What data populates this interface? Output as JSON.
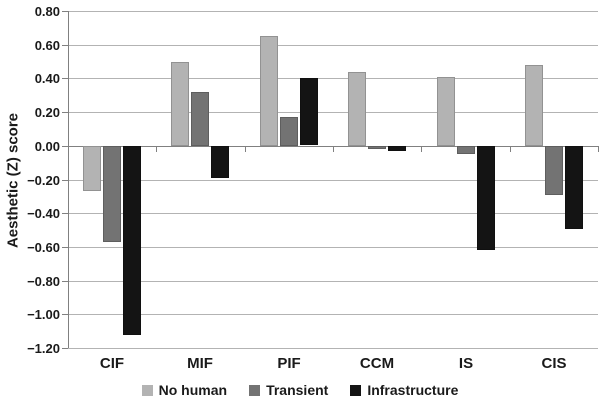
{
  "chart_data": {
    "type": "bar",
    "title": "",
    "xlabel": "",
    "ylabel": "Aesthetic (Z) score",
    "categories": [
      "CIF",
      "MIF",
      "PIF",
      "CCM",
      "IS",
      "CIS"
    ],
    "series": [
      {
        "name": "No human",
        "color": "#b3b3b3",
        "values": [
          -0.27,
          0.5,
          0.65,
          0.44,
          0.41,
          0.48
        ]
      },
      {
        "name": "Transient",
        "color": "#737373",
        "values": [
          -0.57,
          0.32,
          0.17,
          -0.02,
          -0.05,
          -0.29
        ]
      },
      {
        "name": "Infrastructure",
        "color": "#141414",
        "values": [
          -1.12,
          -0.19,
          0.4,
          -0.03,
          -0.62,
          -0.49
        ]
      }
    ],
    "ylim": [
      -1.2,
      0.8
    ],
    "ytick_step": 0.2,
    "ytick_labels": [
      "0.80",
      "0.60",
      "0.40",
      "0.20",
      "0.00",
      "−0.20",
      "−0.40",
      "−0.60",
      "−0.80",
      "−1.00",
      "−1.20"
    ],
    "grid": true,
    "legend_position": "bottom"
  },
  "colors": {
    "gridline": "#b3b3b3",
    "axis": "#808080",
    "text": "#1a1a1a",
    "background": "#ffffff"
  }
}
